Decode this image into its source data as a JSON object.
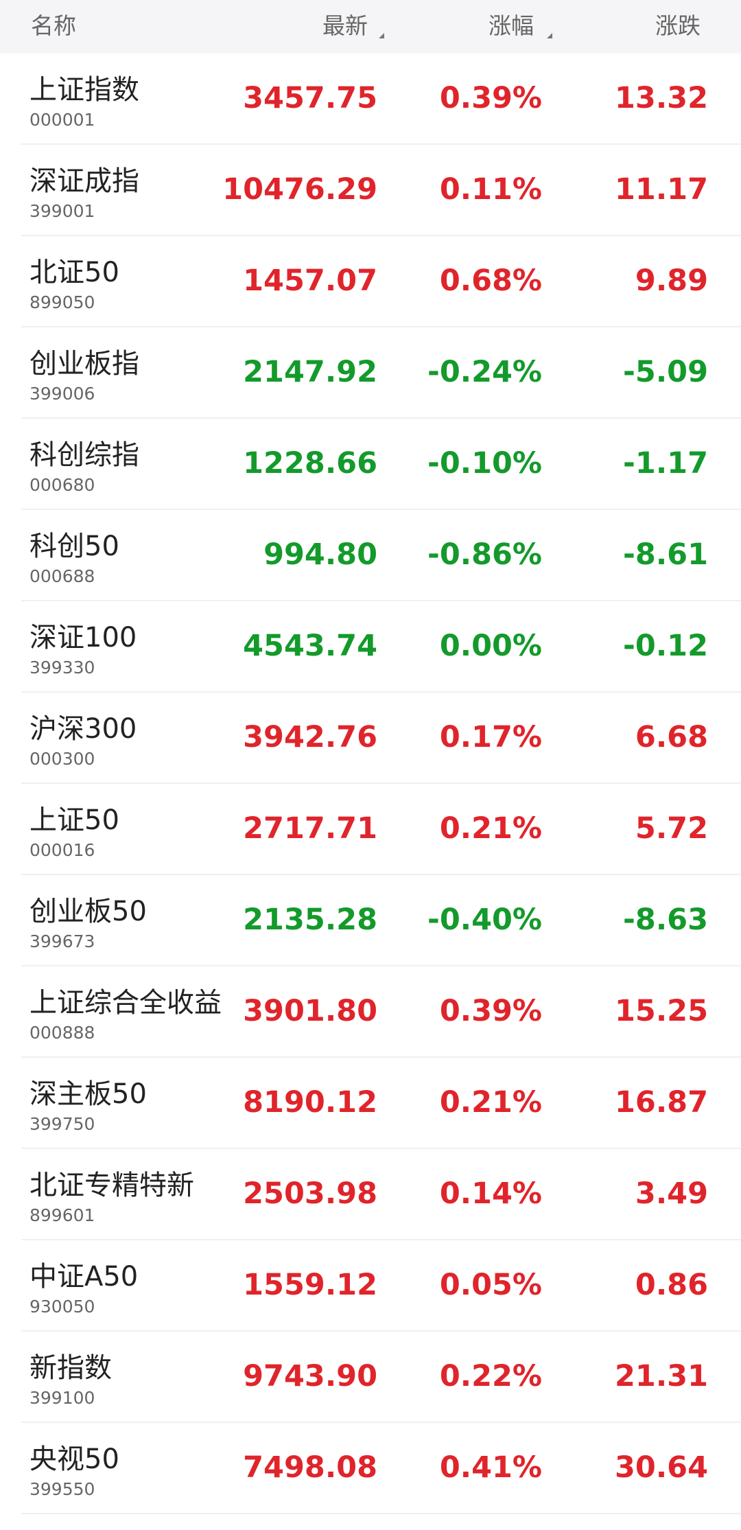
{
  "header": {
    "columns": [
      "名称",
      "最新",
      "涨幅",
      "涨跌"
    ]
  },
  "rows": [
    {
      "name": "上证指数",
      "code": "000001",
      "latest": "3457.75",
      "change_pct": "0.39%",
      "change": "13.32"
    },
    {
      "name": "深证成指",
      "code": "399001",
      "latest": "10476.29",
      "change_pct": "0.11%",
      "change": "11.17"
    },
    {
      "name": "北证50",
      "code": "899050",
      "latest": "1457.07",
      "change_pct": "0.68%",
      "change": "9.89"
    },
    {
      "name": "创业板指",
      "code": "399006",
      "latest": "2147.92",
      "change_pct": "-0.24%",
      "change": "-5.09"
    },
    {
      "name": "科创综指",
      "code": "000680",
      "latest": "1228.66",
      "change_pct": "-0.10%",
      "change": "-1.17"
    },
    {
      "name": "科创50",
      "code": "000688",
      "latest": "994.80",
      "change_pct": "-0.86%",
      "change": "-8.61"
    },
    {
      "name": "深证100",
      "code": "399330",
      "latest": "4543.74",
      "change_pct": "0.00%",
      "change": "-0.12"
    },
    {
      "name": "沪深300",
      "code": "000300",
      "latest": "3942.76",
      "change_pct": "0.17%",
      "change": "6.68"
    },
    {
      "name": "上证50",
      "code": "000016",
      "latest": "2717.71",
      "change_pct": "0.21%",
      "change": "5.72"
    },
    {
      "name": "创业板50",
      "code": "399673",
      "latest": "2135.28",
      "change_pct": "-0.40%",
      "change": "-8.63"
    },
    {
      "name": "上证综合全收益",
      "code": "000888",
      "latest": "3901.80",
      "change_pct": "0.39%",
      "change": "15.25"
    },
    {
      "name": "深主板50",
      "code": "399750",
      "latest": "8190.12",
      "change_pct": "0.21%",
      "change": "16.87"
    },
    {
      "name": "北证专精特新",
      "code": "899601",
      "latest": "2503.98",
      "change_pct": "0.14%",
      "change": "3.49"
    },
    {
      "name": "中证A50",
      "code": "930050",
      "latest": "1559.12",
      "change_pct": "0.05%",
      "change": "0.86"
    },
    {
      "name": "新指数",
      "code": "399100",
      "latest": "9743.90",
      "change_pct": "0.22%",
      "change": "21.31"
    },
    {
      "name": "央视50",
      "code": "399550",
      "latest": "7498.08",
      "change_pct": "0.41%",
      "change": "30.64"
    }
  ]
}
